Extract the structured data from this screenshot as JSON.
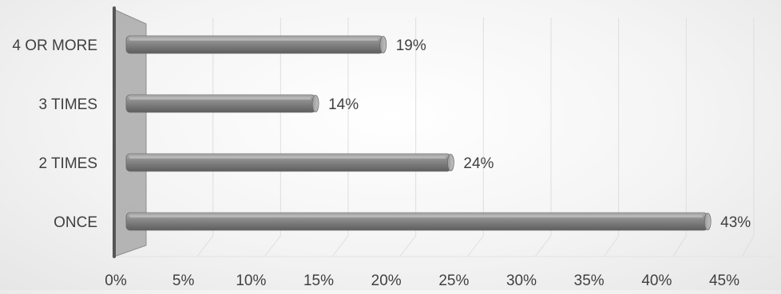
{
  "chart_data": {
    "type": "bar",
    "orientation": "horizontal",
    "style": "3d",
    "categories": [
      "4 OR MORE",
      "3 TIMES",
      "2 TIMES",
      "ONCE"
    ],
    "values": [
      19,
      14,
      24,
      43
    ],
    "value_labels": [
      "19%",
      "14%",
      "24%",
      "43%"
    ],
    "x_ticks": [
      "0%",
      "5%",
      "10%",
      "15%",
      "20%",
      "25%",
      "30%",
      "35%",
      "40%",
      "45%"
    ],
    "xlim": [
      0,
      45
    ],
    "grid": true,
    "colors": {
      "bar_light": "#a8a8a8",
      "bar_mid": "#8a8a8a",
      "bar_dark": "#5c5c5c",
      "wall": "#a9a9a9",
      "axis": "#555555",
      "text": "#404040",
      "grid": "#dedede"
    }
  }
}
